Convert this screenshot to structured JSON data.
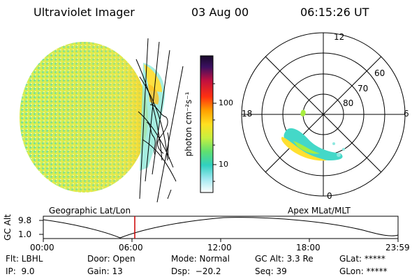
{
  "header": {
    "title": "Ultraviolet Imager",
    "date": "03 Aug 00",
    "time": "06:15:26 UT"
  },
  "colors": {
    "accent_marker": "#cc0000",
    "aurora_bright": "#ffe030",
    "aurora_mid": "#a8ee40",
    "aurora_low": "#40d8c8"
  },
  "colorbar": {
    "unit_label": "photon cm⁻²s⁻¹",
    "ticks": [
      "100",
      "10"
    ],
    "scale": "log"
  },
  "polar_plot": {
    "mlt_labels": [
      "12",
      "18",
      "6",
      "0"
    ],
    "mlat_labels": [
      "60",
      "70",
      "80"
    ]
  },
  "panel_labels": {
    "left": "Geographic Lat/Lon",
    "right": "Apex MLat/MLT"
  },
  "alt_plot": {
    "ylabel": "GC Alt",
    "yticks": [
      "9.8",
      "1.0"
    ],
    "xticks": [
      "00:00",
      "06:00",
      "12:00",
      "18:00",
      "23:59"
    ],
    "current_time_marker": "06:15"
  },
  "footer": {
    "flt": "Flt: LBHL",
    "ip": "IP:  9.0",
    "door": "Door: Open",
    "gain": "Gain: 13",
    "mode": "Mode: Normal",
    "dsp": "Dsp:  −20.2",
    "gcalt": "GC Alt: 3.3 Re",
    "seq": "Seq: 39",
    "glat": "GLat: *****",
    "glon": "GLon: *****"
  }
}
